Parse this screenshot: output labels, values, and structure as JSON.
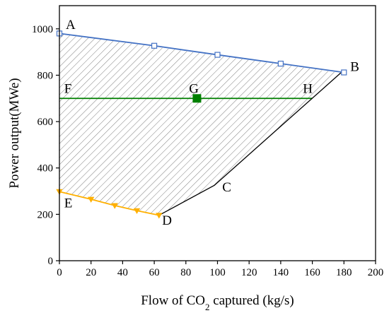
{
  "chart_data": {
    "type": "line",
    "title": "",
    "xlabel_parts": [
      "Flow of CO",
      "2",
      " captured (kg/s)"
    ],
    "ylabel": "Power output(MWe)",
    "xlim": [
      0,
      200
    ],
    "ylim": [
      0,
      1100
    ],
    "xticks": [
      0,
      20,
      40,
      60,
      80,
      100,
      120,
      140,
      160,
      180,
      200
    ],
    "yticks": [
      0,
      200,
      400,
      600,
      800,
      1000
    ],
    "grid": false,
    "legend": "none",
    "colors": {
      "upper": "#4472C4",
      "mid": "#008000",
      "lower": "#FFB000",
      "boundary": "#000000",
      "hatch": "#808080"
    },
    "region_vertices": [
      {
        "label": "A",
        "x": 0,
        "y": 980
      },
      {
        "label": "B",
        "x": 178,
        "y": 810
      },
      {
        "label": "C",
        "x": 98,
        "y": 325
      },
      {
        "label": "D",
        "x": 63,
        "y": 196
      },
      {
        "label": "E",
        "x": 0,
        "y": 298
      }
    ],
    "series": [
      {
        "key": "upper",
        "marker": "square-open",
        "points": [
          [
            0,
            980
          ],
          [
            60,
            927
          ],
          [
            100,
            888
          ],
          [
            140,
            850
          ],
          [
            180,
            812
          ]
        ]
      },
      {
        "key": "lower",
        "marker": "triangle-down",
        "points": [
          [
            0,
            298
          ],
          [
            20,
            265
          ],
          [
            35,
            238
          ],
          [
            49,
            216
          ],
          [
            63,
            196
          ]
        ]
      },
      {
        "key": "mid",
        "marker": "none",
        "points": [
          [
            0,
            700
          ],
          [
            160,
            700
          ]
        ]
      },
      {
        "key": "boundary",
        "marker": "none",
        "points": [
          [
            63,
            196
          ],
          [
            98,
            325
          ],
          [
            178,
            810
          ]
        ]
      }
    ],
    "highlight_point": {
      "label": "G",
      "x": 87,
      "y": 700,
      "marker": "square-filled"
    },
    "point_labels": [
      {
        "text": "A",
        "x": 4,
        "y": 1000
      },
      {
        "text": "B",
        "x": 184,
        "y": 818
      },
      {
        "text": "C",
        "x": 103,
        "y": 298
      },
      {
        "text": "D",
        "x": 65,
        "y": 155
      },
      {
        "text": "E",
        "x": 3,
        "y": 230
      },
      {
        "text": "F",
        "x": 3,
        "y": 723
      },
      {
        "text": "G",
        "x": 82,
        "y": 723
      },
      {
        "text": "H",
        "x": 154,
        "y": 723
      }
    ]
  }
}
